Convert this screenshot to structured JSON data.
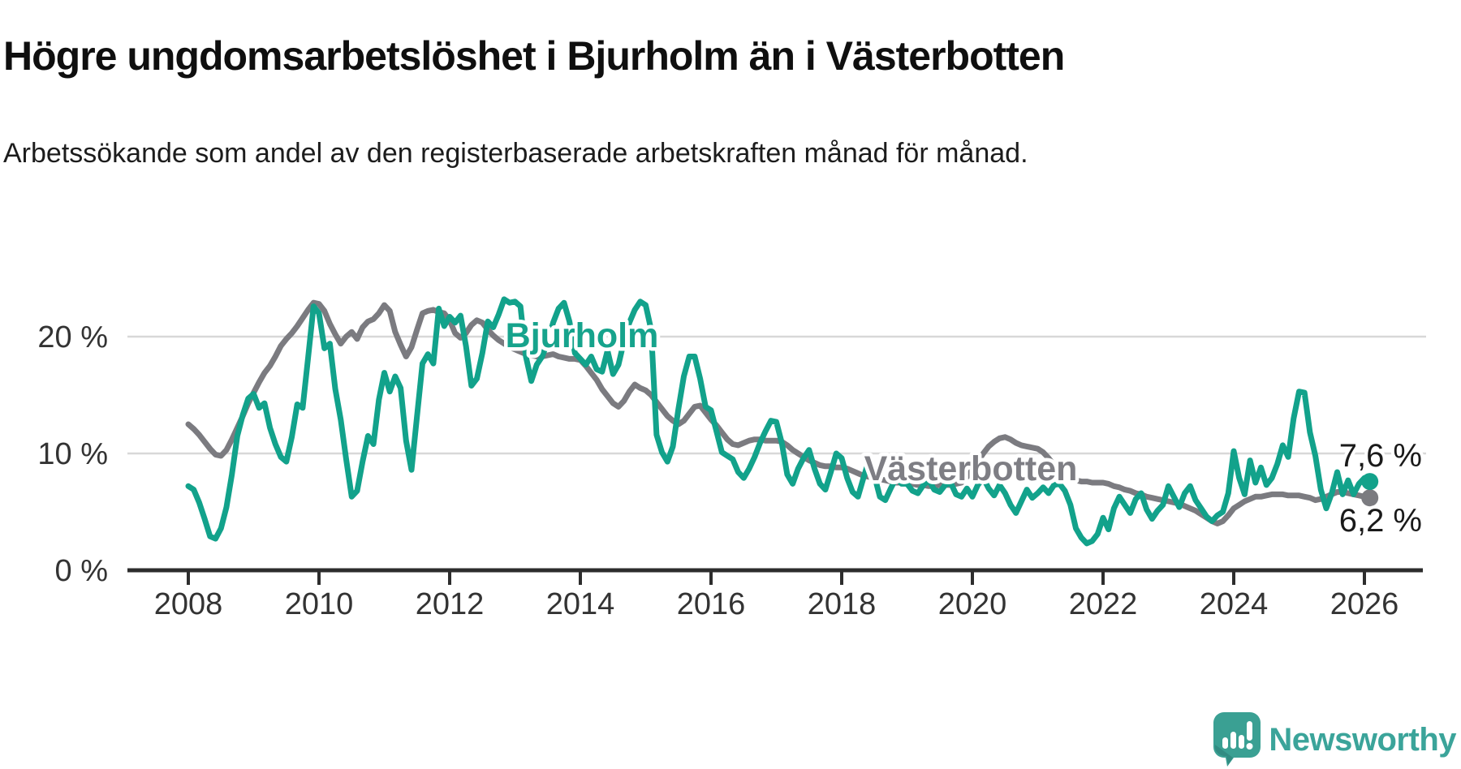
{
  "title": "Högre ungdomsarbetslöshet i Bjurholm än i Västerbotten",
  "subtitle": "Arbetssökande som andel av den registerbaserade arbetskraften månad för månad.",
  "branding": {
    "logo_text": "Newsworthy",
    "logo_icon": "newsworthy-speech-bubble-barchart-icon",
    "logo_color": "#3ba49a"
  },
  "colors": {
    "background": "#ffffff",
    "grid": "#d8d8d8",
    "axis": "#2d2d2d",
    "tick_text": "#333333",
    "annotation_text": "#1a1a1a",
    "bjurholm": "#12a28b",
    "vasterbotten": "#7b7b80",
    "bjurholm_label": "#16a38c",
    "vasterbotten_label": "#7e7e84"
  },
  "chart_data": {
    "type": "line",
    "title": "Högre ungdomsarbetslöshet i Bjurholm än i Västerbotten",
    "subtitle": "Arbetssökande som andel av den registerbaserade arbetskraften månad för månad.",
    "unit": "%",
    "x_start_year": 2008,
    "x_start_month": 1,
    "x_step": "monthly",
    "xlim": [
      2007.1,
      2026.9
    ],
    "ylim": [
      0,
      24
    ],
    "grid": "horizontal",
    "legend_position": "inline-labels",
    "x_ticks": [
      "2008",
      "2010",
      "2012",
      "2014",
      "2016",
      "2018",
      "2020",
      "2022",
      "2024",
      "2026"
    ],
    "y_ticks": [
      {
        "value": 0,
        "label": "0 %"
      },
      {
        "value": 10,
        "label": "10 %"
      },
      {
        "value": 20,
        "label": "20 %"
      }
    ],
    "series": [
      {
        "name": "Bjurholm",
        "color": "#12a28b",
        "end_label": "7,6 %",
        "last_value": 7.6,
        "values": [
          7.2,
          6.9,
          5.8,
          4.4,
          2.9,
          2.7,
          3.6,
          5.4,
          8.2,
          11.5,
          13.3,
          14.7,
          15.1,
          13.9,
          14.3,
          12.2,
          10.8,
          9.7,
          9.3,
          11.4,
          14.2,
          13.9,
          18.2,
          22.6,
          22.0,
          19.0,
          19.4,
          15.5,
          12.9,
          9.5,
          6.3,
          6.8,
          9.3,
          11.5,
          10.8,
          14.6,
          16.9,
          15.3,
          16.6,
          15.6,
          11.1,
          8.6,
          13.2,
          17.7,
          18.5,
          17.7,
          22.4,
          20.9,
          21.7,
          21.2,
          21.8,
          19.2,
          15.8,
          16.4,
          18.6,
          21.3,
          20.8,
          21.9,
          23.2,
          22.9,
          23.0,
          22.6,
          18.3,
          16.2,
          17.6,
          18.3,
          19.6,
          21.2,
          22.4,
          22.9,
          21.3,
          18.6,
          18.1,
          17.6,
          18.3,
          17.2,
          17.0,
          18.8,
          16.8,
          17.6,
          19.6,
          21.2,
          22.3,
          23.0,
          22.7,
          20.6,
          11.6,
          10.1,
          9.3,
          10.6,
          13.8,
          16.6,
          18.3,
          18.3,
          16.4,
          14.0,
          13.7,
          11.9,
          10.1,
          9.8,
          9.5,
          8.4,
          7.9,
          8.7,
          9.7,
          10.9,
          11.9,
          12.8,
          12.7,
          10.9,
          8.2,
          7.4,
          8.7,
          9.6,
          10.3,
          8.7,
          7.4,
          6.9,
          8.4,
          10.0,
          9.6,
          7.9,
          6.7,
          6.3,
          7.9,
          9.4,
          8.1,
          6.3,
          6.0,
          7.0,
          7.9,
          7.4,
          7.4,
          6.8,
          6.6,
          7.3,
          7.7,
          6.9,
          6.7,
          7.3,
          7.5,
          6.5,
          6.3,
          7.0,
          6.3,
          7.3,
          7.9,
          7.0,
          6.4,
          7.3,
          6.6,
          5.6,
          4.9,
          5.9,
          6.9,
          6.2,
          6.6,
          7.1,
          6.6,
          7.3,
          7.4,
          6.8,
          5.6,
          3.6,
          2.8,
          2.3,
          2.5,
          3.1,
          4.5,
          3.5,
          5.3,
          6.3,
          5.6,
          4.9,
          6.1,
          6.6,
          5.2,
          4.4,
          5.1,
          5.6,
          7.2,
          6.3,
          5.4,
          6.6,
          7.2,
          6.0,
          5.3,
          4.6,
          4.2,
          4.7,
          5.0,
          6.6,
          10.2,
          7.9,
          6.5,
          9.4,
          7.5,
          8.8,
          7.3,
          7.9,
          9.1,
          10.7,
          9.7,
          13.0,
          15.3,
          15.2,
          11.8,
          9.8,
          6.9,
          5.3,
          6.6,
          8.4,
          6.5,
          7.7,
          6.5,
          7.4,
          7.9,
          7.6
        ]
      },
      {
        "name": "Västerbotten",
        "color": "#7b7b80",
        "end_label": "6,2 %",
        "last_value": 6.2,
        "values": [
          12.5,
          12.1,
          11.6,
          11.0,
          10.4,
          9.9,
          9.8,
          10.3,
          11.2,
          12.2,
          13.2,
          14.3,
          15.2,
          16.1,
          16.9,
          17.5,
          18.3,
          19.2,
          19.8,
          20.3,
          20.9,
          21.6,
          22.3,
          22.9,
          22.8,
          22.2,
          21.1,
          20.2,
          19.4,
          20.0,
          20.4,
          19.8,
          20.8,
          21.3,
          21.5,
          22.0,
          22.7,
          22.2,
          20.4,
          19.3,
          18.3,
          19.1,
          20.6,
          22.0,
          22.2,
          22.3,
          22.1,
          22.0,
          21.4,
          20.3,
          19.9,
          20.3,
          21.0,
          21.4,
          21.2,
          20.6,
          20.1,
          19.7,
          19.4,
          19.1,
          18.9,
          18.7,
          18.5,
          18.4,
          18.3,
          18.3,
          18.4,
          18.5,
          18.3,
          18.2,
          18.1,
          18.1,
          18.0,
          17.5,
          16.9,
          16.3,
          15.5,
          14.9,
          14.3,
          14.0,
          14.5,
          15.3,
          15.9,
          15.6,
          15.4,
          15.0,
          14.4,
          13.8,
          13.2,
          12.8,
          12.5,
          12.8,
          13.4,
          14.0,
          14.1,
          13.5,
          12.9,
          12.4,
          11.8,
          11.2,
          10.8,
          10.7,
          10.9,
          11.1,
          11.2,
          11.2,
          11.1,
          11.1,
          11.1,
          11.0,
          10.7,
          10.3,
          10.0,
          9.7,
          9.4,
          9.2,
          9.0,
          8.9,
          8.9,
          8.8,
          8.8,
          8.7,
          8.5,
          8.3,
          8.1,
          8.0,
          7.9,
          7.8,
          7.7,
          7.6,
          7.5,
          7.5,
          7.4,
          7.4,
          7.3,
          7.3,
          7.2,
          7.2,
          7.3,
          7.3,
          7.3,
          7.4,
          7.5,
          8.0,
          8.6,
          9.3,
          10.0,
          10.6,
          11.0,
          11.3,
          11.4,
          11.2,
          10.9,
          10.7,
          10.6,
          10.5,
          10.4,
          10.1,
          9.6,
          9.0,
          8.5,
          8.1,
          7.8,
          7.7,
          7.6,
          7.6,
          7.5,
          7.5,
          7.5,
          7.4,
          7.2,
          7.1,
          6.9,
          6.8,
          6.6,
          6.5,
          6.3,
          6.2,
          6.1,
          6.0,
          5.9,
          5.8,
          5.7,
          5.5,
          5.3,
          5.1,
          4.8,
          4.5,
          4.2,
          4.0,
          4.2,
          4.7,
          5.3,
          5.6,
          5.9,
          6.1,
          6.3,
          6.3,
          6.4,
          6.5,
          6.5,
          6.5,
          6.4,
          6.4,
          6.4,
          6.3,
          6.2,
          6.0,
          6.1,
          6.3,
          6.5,
          6.7,
          6.7,
          6.6,
          6.5,
          6.4,
          6.3,
          6.2
        ]
      }
    ]
  }
}
